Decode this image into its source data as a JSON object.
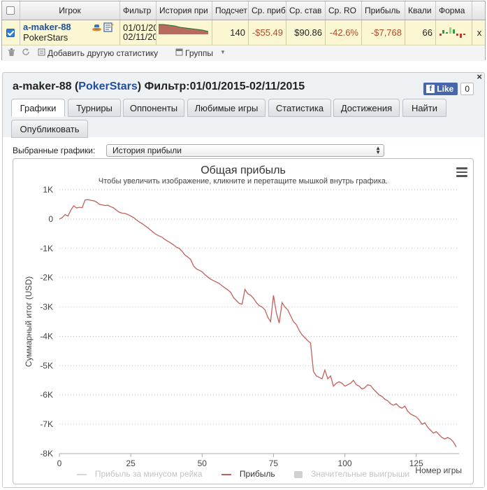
{
  "summary": {
    "columns": [
      "Игрок",
      "Фильтр",
      "История при",
      "Подсчет",
      "Ср. приб",
      "Ср. став",
      "Ср. RO",
      "Прибыль",
      "Квали",
      "Форма"
    ],
    "row": {
      "player_name": "a-maker-88",
      "site": "PokerStars",
      "filter_from": "01/01/20",
      "filter_to": "02/11/20",
      "count": "140",
      "avg_profit": "-$55.49",
      "avg_stake": "$90.86",
      "avg_roi": "-42.6%",
      "profit": "-$7,768",
      "quali": "66",
      "remove": "x"
    },
    "footer": {
      "add_stat": "Добавить другую статистику",
      "groups": "Группы"
    }
  },
  "panel": {
    "player": "a-maker-88",
    "site": "PokerStars",
    "filter_text": "Фильтр:01/01/2015-02/11/2015",
    "like_label": "Like",
    "like_count": "0",
    "tabs": [
      "Графики",
      "Турниры",
      "Оппоненты",
      "Любимые игры",
      "Статистика",
      "Достижения",
      "Найти",
      "Опубликовать"
    ],
    "selector_label": "Выбранные графики:",
    "selector_value": "История прибыли"
  },
  "chart_data": {
    "type": "line",
    "title": "Общая прибыль",
    "subtitle": "Чтобы увеличить изображение, кликните и перетащите мышкой внутрь графика.",
    "xlabel": "Номер игры",
    "ylabel": "Суммарный итог (USD)",
    "xlim": [
      0,
      140
    ],
    "ylim": [
      -8000,
      1000
    ],
    "x_ticks": [
      "0",
      "25",
      "50",
      "75",
      "100",
      "125"
    ],
    "y_ticks": [
      "1K",
      "0",
      "-1K",
      "-2K",
      "-3K",
      "-4K",
      "-5K",
      "-6K",
      "-7K",
      "-8K"
    ],
    "grid": "horizontal dotted",
    "legend_position": "bottom",
    "legend": [
      "Прибыль за минусом рейка",
      "Прибыль",
      "Значительные выигрыши"
    ],
    "series": [
      {
        "name": "Прибыль",
        "color": "#c0605b",
        "points": [
          [
            0,
            0
          ],
          [
            1,
            50
          ],
          [
            2,
            150
          ],
          [
            3,
            100
          ],
          [
            4,
            300
          ],
          [
            5,
            450
          ],
          [
            6,
            380
          ],
          [
            7,
            400
          ],
          [
            8,
            390
          ],
          [
            9,
            650
          ],
          [
            10,
            660
          ],
          [
            11,
            640
          ],
          [
            12,
            620
          ],
          [
            13,
            580
          ],
          [
            14,
            500
          ],
          [
            15,
            480
          ],
          [
            16,
            460
          ],
          [
            17,
            470
          ],
          [
            18,
            420
          ],
          [
            19,
            380
          ],
          [
            20,
            300
          ],
          [
            21,
            230
          ],
          [
            22,
            200
          ],
          [
            23,
            190
          ],
          [
            24,
            150
          ],
          [
            25,
            100
          ],
          [
            26,
            50
          ],
          [
            27,
            -30
          ],
          [
            28,
            -100
          ],
          [
            29,
            -160
          ],
          [
            30,
            -230
          ],
          [
            31,
            -300
          ],
          [
            32,
            -380
          ],
          [
            33,
            -460
          ],
          [
            34,
            -530
          ],
          [
            35,
            -580
          ],
          [
            36,
            -620
          ],
          [
            37,
            -700
          ],
          [
            38,
            -760
          ],
          [
            39,
            -820
          ],
          [
            40,
            -880
          ],
          [
            41,
            -960
          ],
          [
            42,
            -1000
          ],
          [
            43,
            -1100
          ],
          [
            44,
            -1230
          ],
          [
            45,
            -1300
          ],
          [
            46,
            -1380
          ],
          [
            47,
            -1600
          ],
          [
            48,
            -1700
          ],
          [
            49,
            -1750
          ],
          [
            50,
            -1800
          ],
          [
            51,
            -1900
          ],
          [
            52,
            -1980
          ],
          [
            53,
            -2050
          ],
          [
            54,
            -2100
          ],
          [
            55,
            -2150
          ],
          [
            56,
            -2200
          ],
          [
            57,
            -2280
          ],
          [
            58,
            -2350
          ],
          [
            59,
            -2420
          ],
          [
            60,
            -2500
          ],
          [
            61,
            -2680
          ],
          [
            62,
            -2780
          ],
          [
            63,
            -2880
          ],
          [
            64,
            -2900
          ],
          [
            65,
            -2400
          ],
          [
            66,
            -2550
          ],
          [
            67,
            -2600
          ],
          [
            68,
            -2700
          ],
          [
            69,
            -2850
          ],
          [
            70,
            -2950
          ],
          [
            71,
            -3000
          ],
          [
            72,
            -3100
          ],
          [
            73,
            -3350
          ],
          [
            74,
            -3500
          ],
          [
            75,
            -2600
          ],
          [
            76,
            -3200
          ],
          [
            77,
            -3550
          ],
          [
            78,
            -2850
          ],
          [
            79,
            -3000
          ],
          [
            80,
            -3100
          ],
          [
            81,
            -3300
          ],
          [
            82,
            -3500
          ],
          [
            83,
            -3600
          ],
          [
            84,
            -3800
          ],
          [
            85,
            -3950
          ],
          [
            86,
            -4050
          ],
          [
            87,
            -4150
          ],
          [
            88,
            -4230
          ],
          [
            89,
            -5200
          ],
          [
            90,
            -5350
          ],
          [
            91,
            -5400
          ],
          [
            92,
            -5450
          ],
          [
            93,
            -5150
          ],
          [
            94,
            -5450
          ],
          [
            95,
            -5350
          ],
          [
            96,
            -5700
          ],
          [
            97,
            -5600
          ],
          [
            98,
            -5550
          ],
          [
            99,
            -5600
          ],
          [
            100,
            -5700
          ],
          [
            101,
            -5650
          ],
          [
            102,
            -5600
          ],
          [
            103,
            -5500
          ],
          [
            104,
            -5650
          ],
          [
            105,
            -5700
          ],
          [
            106,
            -5800
          ],
          [
            107,
            -5750
          ],
          [
            108,
            -5650
          ],
          [
            109,
            -5680
          ],
          [
            110,
            -5800
          ],
          [
            111,
            -5900
          ],
          [
            112,
            -6000
          ],
          [
            113,
            -6050
          ],
          [
            114,
            -6150
          ],
          [
            115,
            -6200
          ],
          [
            116,
            -6300
          ],
          [
            117,
            -6350
          ],
          [
            118,
            -6300
          ],
          [
            119,
            -6400
          ],
          [
            120,
            -6450
          ],
          [
            121,
            -6380
          ],
          [
            122,
            -6550
          ],
          [
            123,
            -6650
          ],
          [
            124,
            -6700
          ],
          [
            125,
            -6750
          ],
          [
            126,
            -6850
          ],
          [
            127,
            -7000
          ],
          [
            128,
            -6950
          ],
          [
            129,
            -7100
          ],
          [
            130,
            -7200
          ],
          [
            131,
            -7300
          ],
          [
            132,
            -7250
          ],
          [
            133,
            -7350
          ],
          [
            134,
            -7450
          ],
          [
            135,
            -7500
          ],
          [
            136,
            -7450
          ],
          [
            137,
            -7500
          ],
          [
            138,
            -7600
          ],
          [
            139,
            -7768
          ]
        ]
      }
    ]
  },
  "colors": {
    "accent_link": "#1f4f9c",
    "negative": "#b4492a",
    "row_highlight": "#fbf7d2",
    "profit_line": "#c0605b"
  }
}
